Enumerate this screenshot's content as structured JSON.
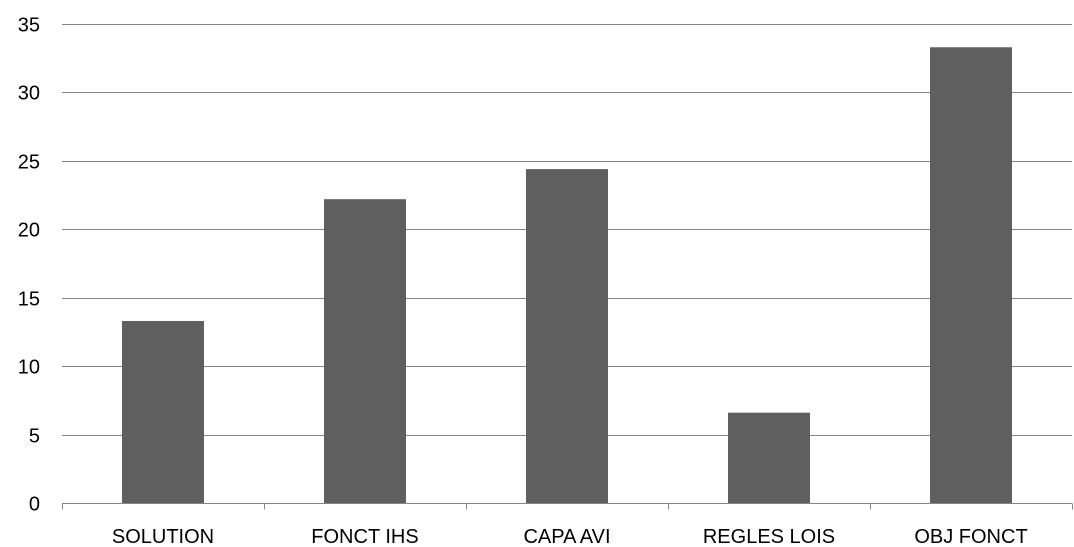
{
  "chart_data": {
    "type": "bar",
    "title": "",
    "xlabel": "",
    "ylabel": "",
    "categories": [
      "SOLUTION",
      "FONCT IHS",
      "CAPA AVI",
      "REGLES LOIS",
      "OBJ FONCT"
    ],
    "values": [
      13.3,
      22.2,
      24.4,
      6.6,
      33.3
    ],
    "ylim": [
      0,
      35
    ],
    "yticks": [
      "0",
      "5",
      "10",
      "15",
      "20",
      "25",
      "30",
      "35"
    ],
    "grid": true,
    "legend": "none",
    "colors": {
      "bar": "#5f5f5f",
      "grid": "#868686",
      "axis": "#868686",
      "text": "#000000"
    }
  }
}
